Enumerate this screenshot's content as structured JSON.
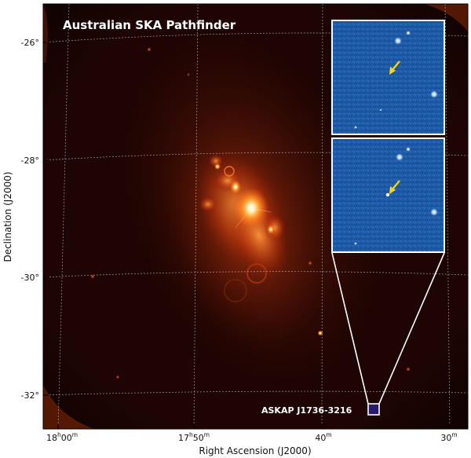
{
  "figure": {
    "title": "Australian SKA Pathfinder",
    "source_label": "ASKAP J1736-3216",
    "xlabel": "Right Ascension (J2000)",
    "ylabel": "Declination (J2000)",
    "ra_ticks": [
      {
        "h": "18",
        "hs": "h",
        "m": "00",
        "ms": "m"
      },
      {
        "h": "17",
        "hs": "h",
        "m": "50",
        "ms": "m"
      },
      {
        "h": "",
        "hs": "",
        "m": "40",
        "ms": "m"
      },
      {
        "h": "",
        "hs": "",
        "m": "30",
        "ms": "m"
      }
    ],
    "dec_ticks": [
      "-26°",
      "-28°",
      "-30°",
      "-32°"
    ],
    "insets": [
      {
        "name": "inset-epoch-1",
        "shows_source": false
      },
      {
        "name": "inset-epoch-2",
        "shows_source": true
      }
    ],
    "colors": {
      "background_map": "#1e0503",
      "emission": "#ff7a1e",
      "inset_background": "#1e5aa6",
      "arrow": "#ffd21f",
      "marker_box": "#2a1a6e"
    }
  }
}
